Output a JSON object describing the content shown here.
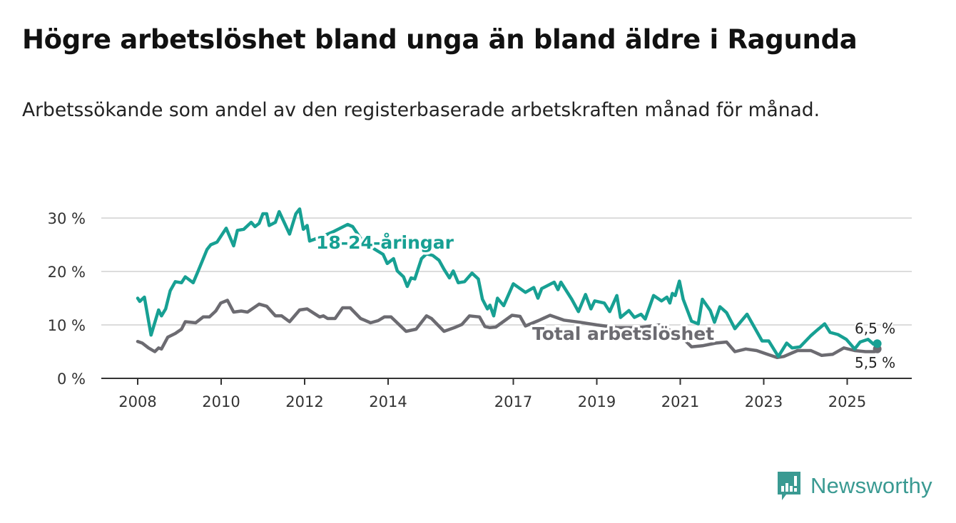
{
  "title": "Högre arbetslöshet bland unga än bland äldre i Ragunda",
  "subtitle": "Arbetssökande som andel av den registerbaserade arbetskraften månad för månad.",
  "brand": "Newsworthy",
  "colors": {
    "youth": "#17a093",
    "total": "#6c6b71",
    "grid": "#dcdcdc",
    "axis": "#333333"
  },
  "chart_data": {
    "type": "line",
    "title": "Högre arbetslöshet bland unga än bland äldre i Ragunda",
    "xlabel": "",
    "ylabel": "",
    "xlim": [
      2007.15,
      2026.6
    ],
    "ylim": [
      0,
      30
    ],
    "y_ticks": [
      0,
      10,
      20,
      30
    ],
    "y_tick_labels": [
      "0 %",
      "10 %",
      "20 %",
      "30 %"
    ],
    "x_ticks": [
      2008,
      2010,
      2012,
      2014,
      2017,
      2019,
      2021,
      2023,
      2025
    ],
    "x_tick_labels": [
      "2008",
      "2010",
      "2012",
      "2014",
      "2017",
      "2019",
      "2021",
      "2023",
      "2025"
    ],
    "grid": true,
    "series": [
      {
        "name": "18-24-åringar",
        "key": "youth",
        "end_label": "6,5 %",
        "end_value": 6.5,
        "points": [
          [
            2008.0,
            15.0
          ],
          [
            2008.05,
            14.4
          ],
          [
            2008.16,
            15.2
          ],
          [
            2008.32,
            8.1
          ],
          [
            2008.5,
            12.8
          ],
          [
            2008.57,
            11.7
          ],
          [
            2008.67,
            13.0
          ],
          [
            2008.78,
            16.4
          ],
          [
            2008.9,
            18.1
          ],
          [
            2009.05,
            17.9
          ],
          [
            2009.14,
            19.0
          ],
          [
            2009.33,
            17.9
          ],
          [
            2009.45,
            20.1
          ],
          [
            2009.66,
            24.1
          ],
          [
            2009.75,
            25.0
          ],
          [
            2009.9,
            25.5
          ],
          [
            2010.12,
            28.1
          ],
          [
            2010.3,
            24.8
          ],
          [
            2010.39,
            27.7
          ],
          [
            2010.54,
            27.9
          ],
          [
            2010.72,
            29.2
          ],
          [
            2010.81,
            28.4
          ],
          [
            2010.91,
            29.0
          ],
          [
            2011.0,
            30.8
          ],
          [
            2011.09,
            30.8
          ],
          [
            2011.15,
            28.6
          ],
          [
            2011.3,
            29.2
          ],
          [
            2011.39,
            31.2
          ],
          [
            2011.64,
            27.0
          ],
          [
            2011.79,
            30.8
          ],
          [
            2011.88,
            31.7
          ],
          [
            2011.97,
            27.9
          ],
          [
            2012.06,
            28.6
          ],
          [
            2012.12,
            25.7
          ],
          [
            2012.4,
            26.5
          ],
          [
            2012.7,
            27.5
          ],
          [
            2013.03,
            28.8
          ],
          [
            2013.15,
            28.4
          ],
          [
            2013.4,
            25.5
          ],
          [
            2013.88,
            23.2
          ],
          [
            2013.98,
            21.5
          ],
          [
            2014.13,
            22.4
          ],
          [
            2014.22,
            20.1
          ],
          [
            2014.37,
            19.0
          ],
          [
            2014.46,
            17.2
          ],
          [
            2014.55,
            18.8
          ],
          [
            2014.64,
            18.6
          ],
          [
            2014.8,
            22.4
          ],
          [
            2014.92,
            23.3
          ],
          [
            2015.07,
            23.0
          ],
          [
            2015.22,
            22.1
          ],
          [
            2015.34,
            20.4
          ],
          [
            2015.47,
            18.8
          ],
          [
            2015.56,
            20.1
          ],
          [
            2015.68,
            17.9
          ],
          [
            2015.83,
            18.1
          ],
          [
            2016.01,
            19.7
          ],
          [
            2016.16,
            18.6
          ],
          [
            2016.26,
            14.8
          ],
          [
            2016.38,
            13.0
          ],
          [
            2016.44,
            13.7
          ],
          [
            2016.53,
            11.7
          ],
          [
            2016.62,
            15.0
          ],
          [
            2016.77,
            13.6
          ],
          [
            2017.0,
            17.7
          ],
          [
            2017.29,
            16.1
          ],
          [
            2017.49,
            17.0
          ],
          [
            2017.59,
            15.0
          ],
          [
            2017.68,
            16.8
          ],
          [
            2017.98,
            18.0
          ],
          [
            2018.07,
            16.6
          ],
          [
            2018.14,
            18.0
          ],
          [
            2018.4,
            14.8
          ],
          [
            2018.56,
            12.5
          ],
          [
            2018.73,
            15.7
          ],
          [
            2018.86,
            13.0
          ],
          [
            2018.95,
            14.5
          ],
          [
            2019.18,
            14.1
          ],
          [
            2019.31,
            12.5
          ],
          [
            2019.48,
            15.5
          ],
          [
            2019.57,
            11.4
          ],
          [
            2019.77,
            12.7
          ],
          [
            2019.9,
            11.4
          ],
          [
            2020.06,
            12.0
          ],
          [
            2020.16,
            11.1
          ],
          [
            2020.36,
            15.5
          ],
          [
            2020.55,
            14.5
          ],
          [
            2020.68,
            15.2
          ],
          [
            2020.75,
            14.1
          ],
          [
            2020.81,
            15.9
          ],
          [
            2020.88,
            15.5
          ],
          [
            2020.98,
            18.2
          ],
          [
            2021.07,
            14.8
          ],
          [
            2021.27,
            10.7
          ],
          [
            2021.43,
            10.2
          ],
          [
            2021.53,
            14.8
          ],
          [
            2021.72,
            12.7
          ],
          [
            2021.82,
            10.5
          ],
          [
            2021.95,
            13.4
          ],
          [
            2022.11,
            12.3
          ],
          [
            2022.31,
            9.3
          ],
          [
            2022.6,
            12.0
          ],
          [
            2022.96,
            7.0
          ],
          [
            2023.12,
            7.0
          ],
          [
            2023.35,
            4.1
          ],
          [
            2023.55,
            6.6
          ],
          [
            2023.68,
            5.7
          ],
          [
            2023.87,
            5.9
          ],
          [
            2024.13,
            8.0
          ],
          [
            2024.26,
            8.9
          ],
          [
            2024.46,
            10.2
          ],
          [
            2024.59,
            8.6
          ],
          [
            2024.78,
            8.2
          ],
          [
            2024.98,
            7.3
          ],
          [
            2025.18,
            5.5
          ],
          [
            2025.31,
            6.8
          ],
          [
            2025.5,
            7.3
          ],
          [
            2025.63,
            6.4
          ],
          [
            2025.72,
            6.5
          ]
        ]
      },
      {
        "name": "Total arbetslöshet",
        "key": "total",
        "end_label": "5,5 %",
        "end_value": 5.5,
        "points": [
          [
            2008.0,
            6.9
          ],
          [
            2008.11,
            6.6
          ],
          [
            2008.26,
            5.7
          ],
          [
            2008.41,
            5.0
          ],
          [
            2008.5,
            5.7
          ],
          [
            2008.57,
            5.5
          ],
          [
            2008.72,
            7.7
          ],
          [
            2008.9,
            8.4
          ],
          [
            2009.05,
            9.2
          ],
          [
            2009.14,
            10.6
          ],
          [
            2009.39,
            10.4
          ],
          [
            2009.57,
            11.5
          ],
          [
            2009.72,
            11.5
          ],
          [
            2009.87,
            12.6
          ],
          [
            2009.99,
            14.1
          ],
          [
            2010.15,
            14.6
          ],
          [
            2010.3,
            12.4
          ],
          [
            2010.48,
            12.6
          ],
          [
            2010.63,
            12.4
          ],
          [
            2010.91,
            13.9
          ],
          [
            2011.09,
            13.5
          ],
          [
            2011.3,
            11.7
          ],
          [
            2011.45,
            11.7
          ],
          [
            2011.64,
            10.6
          ],
          [
            2011.88,
            12.8
          ],
          [
            2012.06,
            13.0
          ],
          [
            2012.24,
            12.1
          ],
          [
            2012.36,
            11.5
          ],
          [
            2012.45,
            11.7
          ],
          [
            2012.55,
            11.2
          ],
          [
            2012.73,
            11.2
          ],
          [
            2012.91,
            13.2
          ],
          [
            2013.09,
            13.2
          ],
          [
            2013.34,
            11.2
          ],
          [
            2013.58,
            10.4
          ],
          [
            2013.76,
            10.8
          ],
          [
            2013.91,
            11.5
          ],
          [
            2014.07,
            11.5
          ],
          [
            2014.43,
            8.8
          ],
          [
            2014.67,
            9.2
          ],
          [
            2014.92,
            11.7
          ],
          [
            2015.04,
            11.2
          ],
          [
            2015.34,
            8.8
          ],
          [
            2015.59,
            9.5
          ],
          [
            2015.77,
            10.1
          ],
          [
            2015.95,
            11.7
          ],
          [
            2016.19,
            11.5
          ],
          [
            2016.32,
            9.7
          ],
          [
            2016.44,
            9.5
          ],
          [
            2016.58,
            9.6
          ],
          [
            2016.97,
            11.8
          ],
          [
            2017.16,
            11.6
          ],
          [
            2017.29,
            9.8
          ],
          [
            2017.6,
            10.8
          ],
          [
            2017.88,
            11.8
          ],
          [
            2018.21,
            10.9
          ],
          [
            2018.6,
            10.5
          ],
          [
            2019.0,
            10.0
          ],
          [
            2019.5,
            9.5
          ],
          [
            2020.0,
            9.5
          ],
          [
            2020.5,
            10.0
          ],
          [
            2021.0,
            8.0
          ],
          [
            2021.27,
            5.9
          ],
          [
            2021.53,
            6.1
          ],
          [
            2021.85,
            6.6
          ],
          [
            2022.11,
            6.8
          ],
          [
            2022.31,
            5.0
          ],
          [
            2022.57,
            5.5
          ],
          [
            2022.83,
            5.2
          ],
          [
            2023.09,
            4.5
          ],
          [
            2023.32,
            3.9
          ],
          [
            2023.48,
            4.1
          ],
          [
            2023.81,
            5.2
          ],
          [
            2024.13,
            5.2
          ],
          [
            2024.39,
            4.3
          ],
          [
            2024.65,
            4.5
          ],
          [
            2024.92,
            5.7
          ],
          [
            2025.18,
            5.2
          ],
          [
            2025.44,
            5.0
          ],
          [
            2025.66,
            5.0
          ],
          [
            2025.72,
            5.5
          ]
        ]
      }
    ],
    "legend": "inline-labels"
  }
}
